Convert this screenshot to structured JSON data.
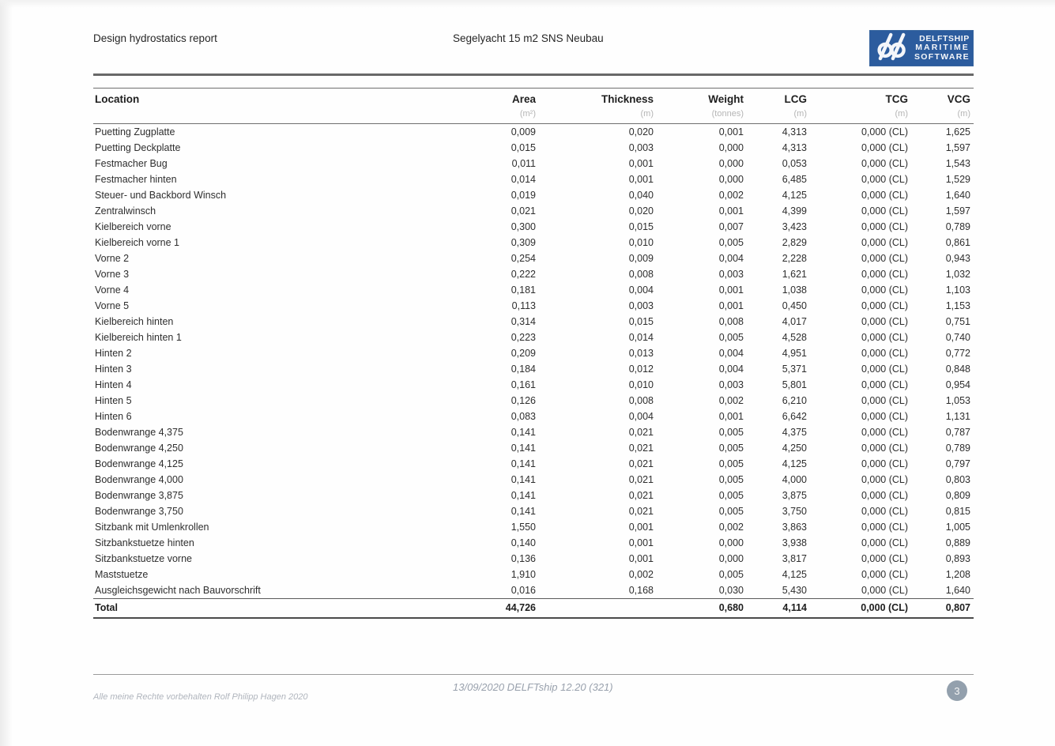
{
  "header": {
    "left_title": "Design hydrostatics report",
    "center_title": "Segelyacht 15 m2 SNS Neubau",
    "logo": {
      "line1": "DELFTSHIP",
      "line2": "MARITIME",
      "line3": "SOFTWARE",
      "bg_color": "#2c5c9e"
    }
  },
  "table": {
    "column_keys": [
      "location",
      "area",
      "thickness",
      "weight",
      "lcg",
      "tcg",
      "vcg"
    ],
    "columns": [
      {
        "label": "Location",
        "unit": ""
      },
      {
        "label": "Area",
        "unit": "(m²)"
      },
      {
        "label": "Thickness",
        "unit": "(m)"
      },
      {
        "label": "Weight",
        "unit": "(tonnes)"
      },
      {
        "label": "LCG",
        "unit": "(m)"
      },
      {
        "label": "TCG",
        "unit": "(m)"
      },
      {
        "label": "VCG",
        "unit": "(m)"
      }
    ],
    "rows": [
      [
        "Puetting Zugplatte",
        "0,009",
        "0,020",
        "0,001",
        "4,313",
        "0,000 (CL)",
        "1,625"
      ],
      [
        "Puetting Deckplatte",
        "0,015",
        "0,003",
        "0,000",
        "4,313",
        "0,000 (CL)",
        "1,597"
      ],
      [
        "Festmacher Bug",
        "0,011",
        "0,001",
        "0,000",
        "0,053",
        "0,000 (CL)",
        "1,543"
      ],
      [
        "Festmacher hinten",
        "0,014",
        "0,001",
        "0,000",
        "6,485",
        "0,000 (CL)",
        "1,529"
      ],
      [
        "Steuer- und Backbord Winsch",
        "0,019",
        "0,040",
        "0,002",
        "4,125",
        "0,000 (CL)",
        "1,640"
      ],
      [
        "Zentralwinsch",
        "0,021",
        "0,020",
        "0,001",
        "4,399",
        "0,000 (CL)",
        "1,597"
      ],
      [
        "Kielbereich vorne",
        "0,300",
        "0,015",
        "0,007",
        "3,423",
        "0,000 (CL)",
        "0,789"
      ],
      [
        "Kielbereich vorne 1",
        "0,309",
        "0,010",
        "0,005",
        "2,829",
        "0,000 (CL)",
        "0,861"
      ],
      [
        "Vorne 2",
        "0,254",
        "0,009",
        "0,004",
        "2,228",
        "0,000 (CL)",
        "0,943"
      ],
      [
        "Vorne 3",
        "0,222",
        "0,008",
        "0,003",
        "1,621",
        "0,000 (CL)",
        "1,032"
      ],
      [
        "Vorne 4",
        "0,181",
        "0,004",
        "0,001",
        "1,038",
        "0,000 (CL)",
        "1,103"
      ],
      [
        "Vorne 5",
        "0,113",
        "0,003",
        "0,001",
        "0,450",
        "0,000 (CL)",
        "1,153"
      ],
      [
        "Kielbereich hinten",
        "0,314",
        "0,015",
        "0,008",
        "4,017",
        "0,000 (CL)",
        "0,751"
      ],
      [
        "Kielbereich hinten 1",
        "0,223",
        "0,014",
        "0,005",
        "4,528",
        "0,000 (CL)",
        "0,740"
      ],
      [
        "Hinten 2",
        "0,209",
        "0,013",
        "0,004",
        "4,951",
        "0,000 (CL)",
        "0,772"
      ],
      [
        "Hinten 3",
        "0,184",
        "0,012",
        "0,004",
        "5,371",
        "0,000 (CL)",
        "0,848"
      ],
      [
        "Hinten 4",
        "0,161",
        "0,010",
        "0,003",
        "5,801",
        "0,000 (CL)",
        "0,954"
      ],
      [
        "Hinten 5",
        "0,126",
        "0,008",
        "0,002",
        "6,210",
        "0,000 (CL)",
        "1,053"
      ],
      [
        "Hinten 6",
        "0,083",
        "0,004",
        "0,001",
        "6,642",
        "0,000 (CL)",
        "1,131"
      ],
      [
        "Bodenwrange 4,375",
        "0,141",
        "0,021",
        "0,005",
        "4,375",
        "0,000 (CL)",
        "0,787"
      ],
      [
        "Bodenwrange 4,250",
        "0,141",
        "0,021",
        "0,005",
        "4,250",
        "0,000 (CL)",
        "0,789"
      ],
      [
        "Bodenwrange 4,125",
        "0,141",
        "0,021",
        "0,005",
        "4,125",
        "0,000 (CL)",
        "0,797"
      ],
      [
        "Bodenwrange 4,000",
        "0,141",
        "0,021",
        "0,005",
        "4,000",
        "0,000 (CL)",
        "0,803"
      ],
      [
        "Bodenwrange 3,875",
        "0,141",
        "0,021",
        "0,005",
        "3,875",
        "0,000 (CL)",
        "0,809"
      ],
      [
        "Bodenwrange 3,750",
        "0,141",
        "0,021",
        "0,005",
        "3,750",
        "0,000 (CL)",
        "0,815"
      ],
      [
        "Sitzbank mit Umlenkrollen",
        "1,550",
        "0,001",
        "0,002",
        "3,863",
        "0,000 (CL)",
        "1,005"
      ],
      [
        "Sitzbankstuetze hinten",
        "0,140",
        "0,001",
        "0,000",
        "3,938",
        "0,000 (CL)",
        "0,889"
      ],
      [
        "Sitzbankstuetze vorne",
        "0,136",
        "0,001",
        "0,000",
        "3,817",
        "0,000 (CL)",
        "0,893"
      ],
      [
        "Maststuetze",
        "1,910",
        "0,002",
        "0,005",
        "4,125",
        "0,000 (CL)",
        "1,208"
      ],
      [
        "Ausgleichsgewicht nach Bauvorschrift",
        "0,016",
        "0,168",
        "0,030",
        "5,430",
        "0,000 (CL)",
        "1,640"
      ]
    ],
    "total_row": [
      "Total",
      "44,726",
      "",
      "0,680",
      "4,114",
      "0,000 (CL)",
      "0,807"
    ]
  },
  "footer": {
    "copyright": "Alle meine Rechte vorbehalten Rolf Philipp Hagen 2020",
    "version_line": "13/09/2020 DELFTship 12.20 (321)",
    "page_number": "3"
  },
  "colors": {
    "logo_blue": "#2c5c9e",
    "page_badge_gray": "#93a0ad",
    "unit_text_gray": "#b5b5b5"
  }
}
